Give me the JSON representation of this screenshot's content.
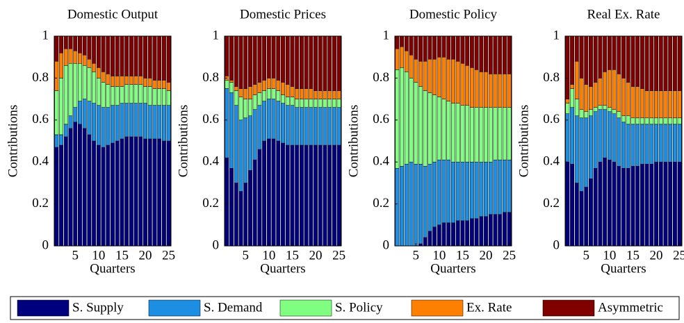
{
  "chart_data": [
    {
      "type": "stacked_bar",
      "title": "Domestic Output",
      "x_label": "Quarters",
      "y_label": "Contributions",
      "x": [
        1,
        2,
        3,
        4,
        5,
        6,
        7,
        8,
        9,
        10,
        11,
        12,
        13,
        14,
        15,
        16,
        17,
        18,
        19,
        20,
        21,
        22,
        23,
        24,
        25
      ],
      "xlim": [
        0.5,
        25.5
      ],
      "xticks": [
        5,
        10,
        15,
        20,
        25
      ],
      "ylim": [
        0,
        1
      ],
      "yticks": [
        0,
        0.2,
        0.4,
        0.6,
        0.8,
        1
      ],
      "series": [
        {
          "name": "S. Supply",
          "color": "#00007f",
          "values": [
            0.47,
            0.48,
            0.52,
            0.56,
            0.59,
            0.58,
            0.56,
            0.53,
            0.5,
            0.48,
            0.47,
            0.48,
            0.49,
            0.5,
            0.51,
            0.52,
            0.52,
            0.52,
            0.52,
            0.51,
            0.51,
            0.51,
            0.51,
            0.5,
            0.5
          ]
        },
        {
          "name": "S. Demand",
          "color": "#1c8fe3",
          "values": [
            0.06,
            0.05,
            0.06,
            0.06,
            0.07,
            0.11,
            0.14,
            0.16,
            0.18,
            0.19,
            0.19,
            0.18,
            0.18,
            0.17,
            0.17,
            0.16,
            0.16,
            0.16,
            0.16,
            0.17,
            0.16,
            0.16,
            0.16,
            0.17,
            0.17
          ]
        },
        {
          "name": "S. Policy",
          "color": "#80ff80",
          "values": [
            0.21,
            0.27,
            0.28,
            0.25,
            0.21,
            0.18,
            0.16,
            0.16,
            0.15,
            0.13,
            0.12,
            0.11,
            0.09,
            0.09,
            0.08,
            0.09,
            0.09,
            0.09,
            0.09,
            0.08,
            0.09,
            0.08,
            0.08,
            0.08,
            0.07
          ]
        },
        {
          "name": "Ex. Rate",
          "color": "#ff7f00",
          "values": [
            0.14,
            0.12,
            0.08,
            0.07,
            0.06,
            0.05,
            0.05,
            0.04,
            0.04,
            0.05,
            0.05,
            0.05,
            0.05,
            0.05,
            0.05,
            0.04,
            0.04,
            0.04,
            0.04,
            0.04,
            0.04,
            0.04,
            0.04,
            0.04,
            0.04
          ]
        },
        {
          "name": "Asymmetric",
          "color": "#800000",
          "values": [
            0.12,
            0.08,
            0.06,
            0.06,
            0.07,
            0.08,
            0.09,
            0.11,
            0.13,
            0.15,
            0.17,
            0.18,
            0.19,
            0.19,
            0.19,
            0.19,
            0.19,
            0.19,
            0.19,
            0.2,
            0.2,
            0.21,
            0.21,
            0.21,
            0.22
          ]
        }
      ]
    },
    {
      "type": "stacked_bar",
      "title": "Domestic Prices",
      "x_label": "Quarters",
      "y_label": "Contributions",
      "x": [
        1,
        2,
        3,
        4,
        5,
        6,
        7,
        8,
        9,
        10,
        11,
        12,
        13,
        14,
        15,
        16,
        17,
        18,
        19,
        20,
        21,
        22,
        23,
        24,
        25
      ],
      "xlim": [
        0.5,
        25.5
      ],
      "xticks": [
        5,
        10,
        15,
        20,
        25
      ],
      "ylim": [
        0,
        1
      ],
      "yticks": [
        0,
        0.2,
        0.4,
        0.6,
        0.8,
        1
      ],
      "series": [
        {
          "name": "S. Supply",
          "color": "#00007f",
          "values": [
            0.42,
            0.37,
            0.3,
            0.26,
            0.3,
            0.36,
            0.41,
            0.46,
            0.5,
            0.51,
            0.51,
            0.5,
            0.49,
            0.48,
            0.48,
            0.48,
            0.48,
            0.48,
            0.48,
            0.48,
            0.48,
            0.48,
            0.48,
            0.48,
            0.48
          ]
        },
        {
          "name": "S. Demand",
          "color": "#1c8fe3",
          "values": [
            0.33,
            0.36,
            0.37,
            0.34,
            0.31,
            0.26,
            0.24,
            0.21,
            0.19,
            0.19,
            0.19,
            0.19,
            0.19,
            0.19,
            0.19,
            0.18,
            0.18,
            0.18,
            0.18,
            0.18,
            0.18,
            0.18,
            0.18,
            0.18,
            0.18
          ]
        },
        {
          "name": "S. Policy",
          "color": "#80ff80",
          "values": [
            0.04,
            0.05,
            0.07,
            0.11,
            0.09,
            0.08,
            0.07,
            0.06,
            0.05,
            0.05,
            0.05,
            0.05,
            0.04,
            0.04,
            0.04,
            0.04,
            0.04,
            0.04,
            0.04,
            0.04,
            0.04,
            0.04,
            0.04,
            0.04,
            0.04
          ]
        },
        {
          "name": "Ex. Rate",
          "color": "#ff7f00",
          "values": [
            0.02,
            0.01,
            0.02,
            0.04,
            0.05,
            0.06,
            0.05,
            0.05,
            0.05,
            0.05,
            0.05,
            0.05,
            0.06,
            0.06,
            0.05,
            0.05,
            0.05,
            0.05,
            0.05,
            0.04,
            0.04,
            0.04,
            0.04,
            0.04,
            0.04
          ]
        },
        {
          "name": "Asymmetric",
          "color": "#800000",
          "values": [
            0.19,
            0.21,
            0.24,
            0.25,
            0.25,
            0.24,
            0.23,
            0.22,
            0.21,
            0.2,
            0.2,
            0.21,
            0.22,
            0.23,
            0.24,
            0.25,
            0.25,
            0.25,
            0.25,
            0.26,
            0.26,
            0.26,
            0.26,
            0.26,
            0.26
          ]
        }
      ]
    },
    {
      "type": "stacked_bar",
      "title": "Domestic Policy",
      "x_label": "Quarters",
      "y_label": "Contributions",
      "x": [
        1,
        2,
        3,
        4,
        5,
        6,
        7,
        8,
        9,
        10,
        11,
        12,
        13,
        14,
        15,
        16,
        17,
        18,
        19,
        20,
        21,
        22,
        23,
        24,
        25
      ],
      "xlim": [
        0.5,
        25.5
      ],
      "xticks": [
        5,
        10,
        15,
        20,
        25
      ],
      "ylim": [
        0,
        1
      ],
      "yticks": [
        0,
        0.2,
        0.4,
        0.6,
        0.8,
        1
      ],
      "series": [
        {
          "name": "S. Supply",
          "color": "#00007f",
          "values": [
            0,
            0,
            0,
            0,
            0,
            0.01,
            0.04,
            0.07,
            0.09,
            0.1,
            0.11,
            0.11,
            0.11,
            0.12,
            0.12,
            0.12,
            0.13,
            0.13,
            0.14,
            0.14,
            0.15,
            0.15,
            0.15,
            0.16,
            0.16
          ]
        },
        {
          "name": "S. Demand",
          "color": "#1c8fe3",
          "values": [
            0.37,
            0.38,
            0.39,
            0.4,
            0.39,
            0.38,
            0.34,
            0.32,
            0.31,
            0.31,
            0.3,
            0.3,
            0.29,
            0.28,
            0.28,
            0.28,
            0.27,
            0.27,
            0.26,
            0.26,
            0.25,
            0.26,
            0.26,
            0.25,
            0.25
          ]
        },
        {
          "name": "S. Policy",
          "color": "#80ff80",
          "values": [
            0.47,
            0.47,
            0.44,
            0.4,
            0.39,
            0.37,
            0.36,
            0.34,
            0.32,
            0.3,
            0.29,
            0.28,
            0.28,
            0.28,
            0.27,
            0.27,
            0.26,
            0.26,
            0.26,
            0.26,
            0.26,
            0.25,
            0.25,
            0.25,
            0.25
          ]
        },
        {
          "name": "Ex. Rate",
          "color": "#ff7f00",
          "values": [
            0.1,
            0.1,
            0.1,
            0.11,
            0.11,
            0.12,
            0.14,
            0.16,
            0.17,
            0.19,
            0.2,
            0.2,
            0.21,
            0.2,
            0.2,
            0.19,
            0.19,
            0.18,
            0.17,
            0.17,
            0.16,
            0.16,
            0.16,
            0.16,
            0.16
          ]
        },
        {
          "name": "Asymmetric",
          "color": "#800000",
          "values": [
            0.06,
            0.05,
            0.07,
            0.09,
            0.11,
            0.12,
            0.12,
            0.11,
            0.11,
            0.1,
            0.1,
            0.11,
            0.11,
            0.12,
            0.13,
            0.14,
            0.15,
            0.16,
            0.17,
            0.17,
            0.18,
            0.18,
            0.18,
            0.18,
            0.18
          ]
        }
      ]
    },
    {
      "type": "stacked_bar",
      "title": "Real Ex. Rate",
      "x_label": "Quarters",
      "y_label": "Contributions",
      "x": [
        1,
        2,
        3,
        4,
        5,
        6,
        7,
        8,
        9,
        10,
        11,
        12,
        13,
        14,
        15,
        16,
        17,
        18,
        19,
        20,
        21,
        22,
        23,
        24,
        25
      ],
      "xlim": [
        0.5,
        25.5
      ],
      "xticks": [
        5,
        10,
        15,
        20,
        25
      ],
      "ylim": [
        0,
        1
      ],
      "yticks": [
        0,
        0.2,
        0.4,
        0.6,
        0.8,
        1
      ],
      "series": [
        {
          "name": "S. Supply",
          "color": "#00007f",
          "values": [
            0.4,
            0.39,
            0.3,
            0.26,
            0.28,
            0.32,
            0.37,
            0.4,
            0.42,
            0.41,
            0.4,
            0.38,
            0.37,
            0.37,
            0.38,
            0.38,
            0.39,
            0.39,
            0.39,
            0.4,
            0.4,
            0.4,
            0.4,
            0.4,
            0.4
          ]
        },
        {
          "name": "S. Demand",
          "color": "#1c8fe3",
          "values": [
            0.23,
            0.27,
            0.32,
            0.35,
            0.33,
            0.3,
            0.27,
            0.25,
            0.23,
            0.23,
            0.23,
            0.23,
            0.22,
            0.21,
            0.2,
            0.2,
            0.19,
            0.19,
            0.19,
            0.18,
            0.18,
            0.18,
            0.18,
            0.18,
            0.18
          ]
        },
        {
          "name": "S. Policy",
          "color": "#80ff80",
          "values": [
            0.05,
            0.09,
            0.08,
            0.04,
            0.03,
            0.03,
            0.02,
            0.02,
            0.02,
            0.02,
            0.02,
            0.03,
            0.03,
            0.04,
            0.03,
            0.03,
            0.03,
            0.03,
            0.03,
            0.03,
            0.03,
            0.03,
            0.03,
            0.03,
            0.03
          ]
        },
        {
          "name": "Ex. Rate",
          "color": "#ff7f00",
          "values": [
            0.02,
            0.02,
            0.18,
            0.15,
            0.13,
            0.11,
            0.12,
            0.13,
            0.16,
            0.18,
            0.19,
            0.18,
            0.18,
            0.16,
            0.15,
            0.15,
            0.14,
            0.13,
            0.13,
            0.13,
            0.13,
            0.13,
            0.13,
            0.13,
            0.13
          ]
        },
        {
          "name": "Asymmetric",
          "color": "#800000",
          "values": [
            0.3,
            0.23,
            0.12,
            0.2,
            0.23,
            0.24,
            0.22,
            0.2,
            0.17,
            0.16,
            0.16,
            0.18,
            0.2,
            0.22,
            0.24,
            0.24,
            0.25,
            0.26,
            0.26,
            0.26,
            0.26,
            0.26,
            0.26,
            0.26,
            0.26
          ]
        }
      ]
    }
  ]
}
